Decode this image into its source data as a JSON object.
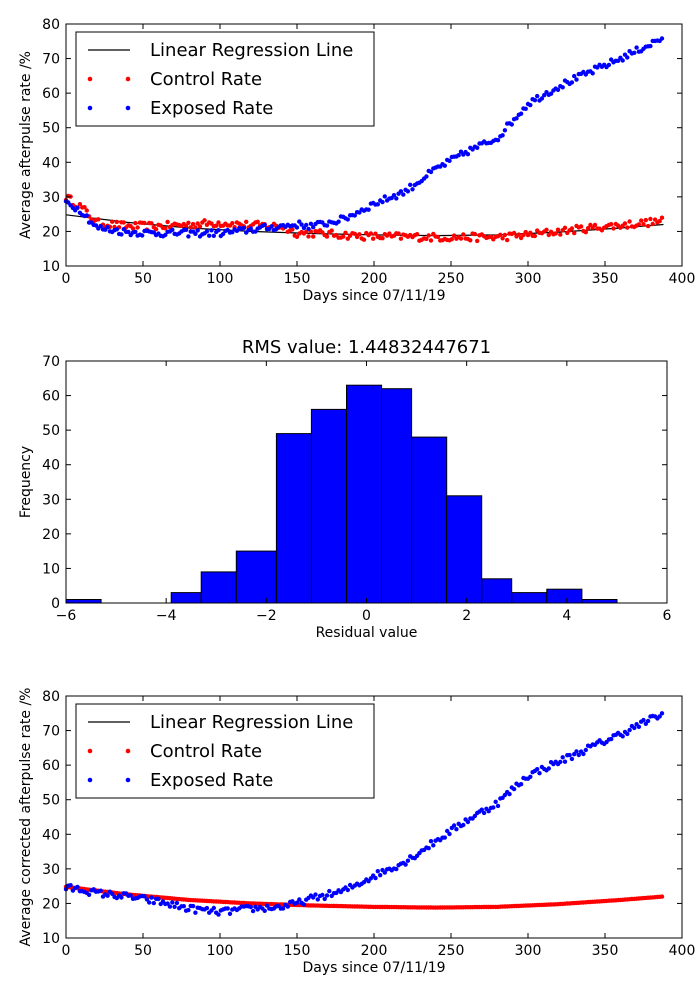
{
  "chart_data": [
    {
      "type": "scatter",
      "xlabel": "Days since 07/11/19",
      "ylabel": "Average afterpulse rate /%",
      "xlim": [
        0,
        400
      ],
      "ylim": [
        10,
        80
      ],
      "xticks": [
        0,
        50,
        100,
        150,
        200,
        250,
        300,
        350,
        400
      ],
      "yticks": [
        10,
        20,
        30,
        40,
        50,
        60,
        70,
        80
      ],
      "legend": {
        "placement": "top-left",
        "entries": [
          "Linear Regression Line",
          "Control Rate",
          "Exposed Rate"
        ]
      },
      "regression": {
        "x": [
          0,
          40,
          80,
          120,
          160,
          200,
          240,
          280,
          320,
          360,
          388
        ],
        "y": [
          24.8,
          22.6,
          21.0,
          20.0,
          19.4,
          19.0,
          18.8,
          19.0,
          19.8,
          21.0,
          22.0
        ]
      },
      "control": {
        "x": [
          0,
          10,
          20,
          40,
          60,
          80,
          100,
          120,
          140,
          150,
          160,
          180,
          200,
          220,
          240,
          260,
          280,
          300,
          320,
          340,
          360,
          388
        ],
        "y": [
          30,
          27,
          22.5,
          21.5,
          21.5,
          22,
          22.5,
          21.8,
          21.5,
          19.5,
          19.5,
          19.0,
          18.5,
          18.5,
          18.3,
          18.3,
          18.3,
          19.0,
          20.0,
          21.0,
          21.8,
          23.0
        ]
      },
      "exposed": {
        "x": [
          0,
          10,
          20,
          40,
          60,
          80,
          100,
          120,
          140,
          150,
          160,
          180,
          200,
          220,
          240,
          260,
          280,
          300,
          320,
          340,
          360,
          388
        ],
        "y": [
          28.5,
          26,
          21,
          19.8,
          19.5,
          19.5,
          19.5,
          20.5,
          21.5,
          22,
          21.5,
          23.5,
          28,
          31.5,
          38,
          43,
          47,
          57,
          62,
          66,
          70,
          76
        ]
      }
    },
    {
      "type": "bar",
      "title": "RMS value: 1.44832447671",
      "xlabel": "Residual value",
      "ylabel": "Frequency",
      "xlim": [
        -6,
        6
      ],
      "ylim": [
        0,
        70
      ],
      "xticks": [
        -6,
        -4,
        -2,
        0,
        2,
        4,
        6
      ],
      "yticks": [
        0,
        10,
        20,
        30,
        40,
        50,
        60,
        70
      ],
      "bin_edges": [
        -6.0,
        -5.3,
        -4.7,
        -3.9,
        -3.3,
        -2.6,
        -1.8,
        -1.1,
        -0.4,
        0.3,
        0.9,
        1.6,
        2.3,
        2.9,
        3.6,
        4.3,
        5.0
      ],
      "values": [
        1,
        0,
        0,
        3,
        9,
        15,
        49,
        56,
        63,
        62,
        48,
        31,
        7,
        3,
        4,
        1
      ]
    },
    {
      "type": "scatter",
      "xlabel": "Days since 07/11/19",
      "ylabel": "Average corrected afterpulse rate /%",
      "xlim": [
        0,
        400
      ],
      "ylim": [
        10,
        80
      ],
      "xticks": [
        0,
        50,
        100,
        150,
        200,
        250,
        300,
        350,
        400
      ],
      "yticks": [
        10,
        20,
        30,
        40,
        50,
        60,
        70,
        80
      ],
      "legend": {
        "placement": "top-left",
        "entries": [
          "Linear Regression Line",
          "Control Rate",
          "Exposed Rate"
        ]
      },
      "regression": {
        "x": [
          0,
          40,
          80,
          120,
          160,
          200,
          240,
          280,
          320,
          360,
          388
        ],
        "y": [
          24.8,
          22.6,
          21.0,
          20.0,
          19.4,
          19.0,
          18.8,
          19.0,
          19.8,
          21.0,
          22.0
        ]
      },
      "control": {
        "x": [
          0,
          40,
          80,
          120,
          160,
          200,
          240,
          280,
          320,
          360,
          388
        ],
        "y": [
          24.8,
          22.6,
          21.0,
          20.0,
          19.4,
          19.0,
          18.8,
          19.0,
          19.8,
          21.0,
          22.0
        ]
      },
      "exposed": {
        "x": [
          0,
          10,
          20,
          40,
          60,
          80,
          100,
          120,
          140,
          150,
          160,
          180,
          200,
          220,
          240,
          260,
          280,
          300,
          320,
          340,
          360,
          388
        ],
        "y": [
          24.5,
          24,
          23,
          22,
          20.5,
          18.5,
          17.5,
          18.5,
          19,
          20,
          21.5,
          23.5,
          28,
          32,
          38,
          44,
          49,
          57,
          61,
          65,
          69,
          75
        ]
      }
    }
  ]
}
